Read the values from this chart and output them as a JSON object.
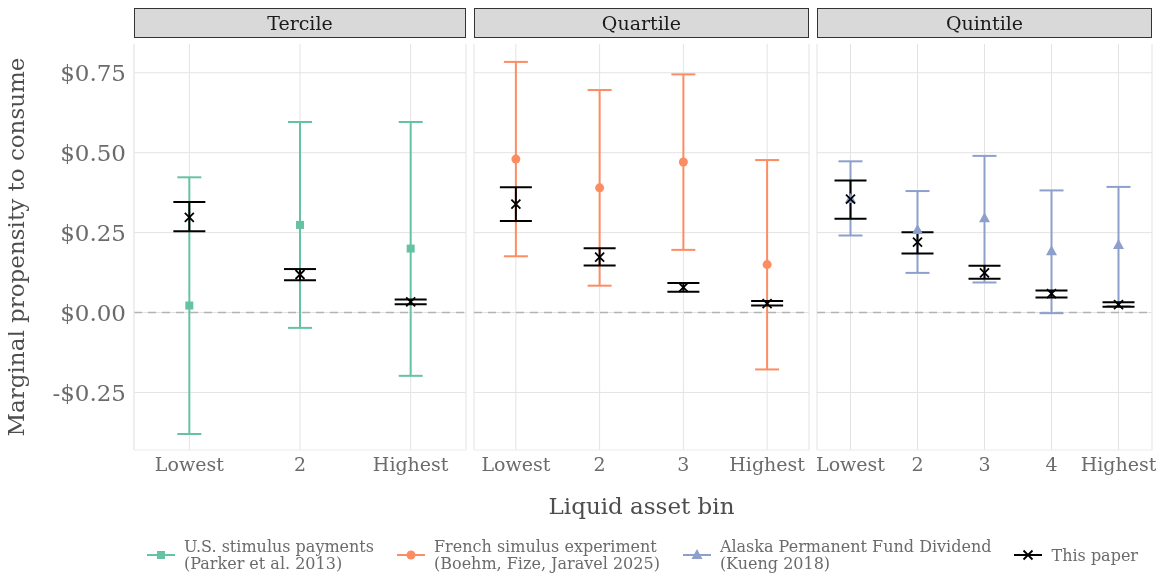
{
  "chart_data": [
    {
      "type": "scatter",
      "title": "Tercile",
      "ylabel": "Marginal propensity to consume",
      "categories": [
        "Lowest",
        "2",
        "Highest"
      ],
      "ylim": [
        -0.43,
        0.84
      ],
      "yticks": [
        {
          "value": -0.25,
          "label": "-$0.25"
        },
        {
          "value": 0,
          "label": "$0.00"
        },
        {
          "value": 0.25,
          "label": "$0.25"
        },
        {
          "value": 0.5,
          "label": "$0.50"
        },
        {
          "value": 0.75,
          "label": "$0.75"
        }
      ],
      "grid": true,
      "legend": "bottom",
      "ref_lines": [
        {
          "axis": "y",
          "value": 0,
          "color": "#b3b3b3",
          "line_style": "dashed"
        }
      ],
      "series": [
        {
          "name": "U.S. stimulus payments\n(Parker et al. 2013)",
          "color": "#66c2a5",
          "marker": "square",
          "values": [
            0.022,
            0.274,
            0.2
          ],
          "errors": [
            [
              -0.38,
              0.423
            ],
            [
              -0.048,
              0.596
            ],
            [
              -0.198,
              0.596
            ]
          ]
        },
        {
          "name": "This paper",
          "color": "#000000",
          "marker": "cross",
          "values": [
            0.298,
            0.119,
            0.033
          ],
          "errors": [
            [
              0.254,
              0.346
            ],
            [
              0.101,
              0.136
            ],
            [
              0.026,
              0.041
            ]
          ]
        }
      ]
    },
    {
      "type": "scatter",
      "title": "Quartile",
      "xlabel": "Liquid asset bin",
      "categories": [
        "Lowest",
        "2",
        "3",
        "Highest"
      ],
      "ylim": [
        -0.43,
        0.84
      ],
      "yticks": [
        -0.25,
        0,
        0.25,
        0.5,
        0.75
      ],
      "tick_labels": "x",
      "grid": true,
      "legend": "bottom",
      "ref_lines": [
        {
          "axis": "y",
          "value": 0,
          "color": "#b3b3b3",
          "line_style": "dashed"
        }
      ],
      "series": [
        {
          "name": "French simulus experiment\n(Boehm, Fize, Jaravel 2025)",
          "color": "#fc8d62",
          "marker": "circle",
          "values": [
            0.48,
            0.39,
            0.471,
            0.15
          ],
          "errors": [
            [
              0.176,
              0.784
            ],
            [
              0.084,
              0.696
            ],
            [
              0.196,
              0.745
            ],
            [
              -0.178,
              0.477
            ]
          ]
        },
        {
          "name": "This paper",
          "color": "#000000",
          "marker": "cross",
          "values": [
            0.339,
            0.173,
            0.079,
            0.028
          ],
          "errors": [
            [
              0.286,
              0.392
            ],
            [
              0.147,
              0.201
            ],
            [
              0.065,
              0.092
            ],
            [
              0.022,
              0.036
            ]
          ]
        }
      ]
    },
    {
      "type": "scatter",
      "title": "Quintile",
      "categories": [
        "Lowest",
        "2",
        "3",
        "4",
        "Highest"
      ],
      "ylim": [
        -0.43,
        0.84
      ],
      "yticks": [
        -0.25,
        0,
        0.25,
        0.5,
        0.75
      ],
      "tick_labels": "x",
      "grid": true,
      "legend": "bottom",
      "ref_lines": [
        {
          "axis": "y",
          "value": 0,
          "color": "#b3b3b3",
          "line_style": "dashed"
        }
      ],
      "series": [
        {
          "name": "Alaska Permanent Fund Dividend\n(Kueng 2018)",
          "color": "#8da0cb",
          "marker": "triangle",
          "values": [
            0.355,
            0.258,
            0.295,
            0.192,
            0.211
          ],
          "errors": [
            [
              0.241,
              0.473
            ],
            [
              0.124,
              0.38
            ],
            [
              0.094,
              0.49
            ],
            [
              -0.002,
              0.382
            ],
            [
              0.02,
              0.393
            ]
          ]
        },
        {
          "name": "This paper",
          "color": "#000000",
          "marker": "cross",
          "values": [
            0.355,
            0.22,
            0.124,
            0.059,
            0.025
          ],
          "errors": [
            [
              0.293,
              0.413
            ],
            [
              0.185,
              0.251
            ],
            [
              0.106,
              0.146
            ],
            [
              0.047,
              0.069
            ],
            [
              0.018,
              0.032
            ]
          ]
        }
      ]
    }
  ]
}
